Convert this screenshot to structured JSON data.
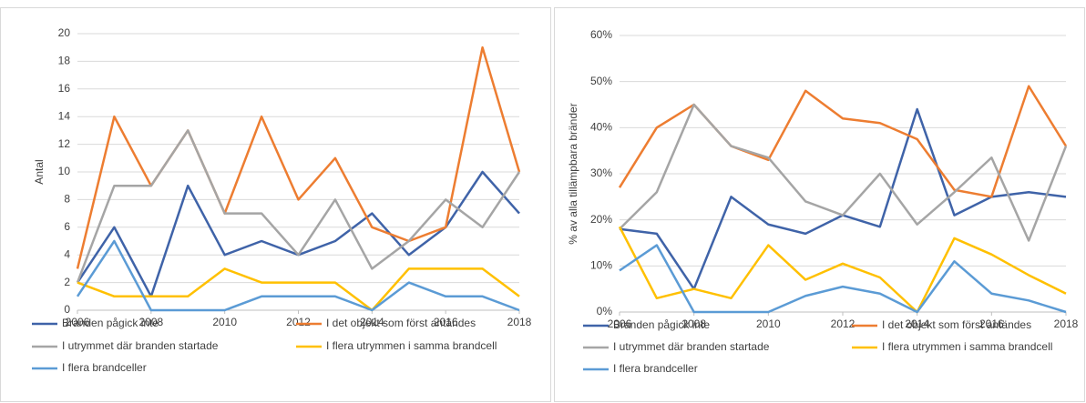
{
  "chart_data": [
    {
      "type": "line",
      "y_label": "Antal",
      "x": [
        2006,
        2007,
        2008,
        2009,
        2010,
        2011,
        2012,
        2013,
        2014,
        2015,
        2016,
        2017,
        2018
      ],
      "xlim": [
        2006,
        2018
      ],
      "xticks": [
        2006,
        2008,
        2010,
        2012,
        2014,
        2016,
        2018
      ],
      "ylim": [
        0,
        20
      ],
      "yticks": [
        0,
        2,
        4,
        6,
        8,
        10,
        12,
        14,
        16,
        18,
        20
      ],
      "grid": true,
      "series": [
        {
          "name": "Branden pågick inte",
          "color": "#3f63a8",
          "values": [
            2,
            6,
            1,
            9,
            4,
            5,
            4,
            5,
            7,
            4,
            6,
            10,
            7
          ]
        },
        {
          "name": "I det objekt som först antändes",
          "color": "#ed7d31",
          "values": [
            3,
            14,
            9,
            13,
            7,
            14,
            8,
            11,
            6,
            5,
            6,
            19,
            10
          ]
        },
        {
          "name": "I utrymmet där branden startade",
          "color": "#a5a5a5",
          "values": [
            2,
            9,
            9,
            13,
            7,
            7,
            4,
            8,
            3,
            5,
            8,
            6,
            10
          ]
        },
        {
          "name": "I flera utrymmen i samma brandcell",
          "color": "#ffc000",
          "values": [
            2,
            1,
            1,
            1,
            3,
            2,
            2,
            2,
            0,
            3,
            3,
            3,
            1
          ]
        },
        {
          "name": "I flera brandceller",
          "color": "#5b9bd5",
          "values": [
            1,
            5,
            0,
            0,
            0,
            1,
            1,
            1,
            0,
            2,
            1,
            1,
            0
          ]
        }
      ]
    },
    {
      "type": "line",
      "y_label": "% av alla tillämpbara bränder",
      "x": [
        2006,
        2007,
        2008,
        2009,
        2010,
        2011,
        2012,
        2013,
        2014,
        2015,
        2016,
        2017,
        2018
      ],
      "xlim": [
        2006,
        2018
      ],
      "xticks": [
        2006,
        2008,
        2010,
        2012,
        2014,
        2016,
        2018
      ],
      "ylim": [
        0,
        60
      ],
      "yticks": [
        {
          "value": 0,
          "label": "0%"
        },
        {
          "value": 10,
          "label": "10%"
        },
        {
          "value": 20,
          "label": "20%"
        },
        {
          "value": 30,
          "label": "30%"
        },
        {
          "value": 40,
          "label": "40%"
        },
        {
          "value": 50,
          "label": "50%"
        },
        {
          "value": 60,
          "label": "60%"
        }
      ],
      "grid": true,
      "series": [
        {
          "name": "Branden pågick inte",
          "color": "#3f63a8",
          "values": [
            18,
            17,
            5,
            25,
            19,
            17,
            21,
            18.5,
            44,
            21,
            25,
            26,
            25
          ]
        },
        {
          "name": "I det objekt som först antändes",
          "color": "#ed7d31",
          "values": [
            27,
            40,
            45,
            36,
            33,
            48,
            42,
            41,
            37.5,
            26.5,
            25,
            49,
            36
          ]
        },
        {
          "name": "I utrymmet där branden startade",
          "color": "#a5a5a5",
          "values": [
            18,
            26,
            45,
            36,
            33.5,
            24,
            21,
            30,
            19,
            26,
            33.5,
            15.5,
            36
          ]
        },
        {
          "name": "I flera utrymmen i samma brandcell",
          "color": "#ffc000",
          "values": [
            18.5,
            3,
            5,
            3,
            14.5,
            7,
            10.5,
            7.5,
            0,
            16,
            12.5,
            8,
            4
          ]
        },
        {
          "name": "I flera brandceller",
          "color": "#5b9bd5",
          "values": [
            9,
            14.5,
            0,
            0,
            0,
            3.5,
            5.5,
            4,
            0,
            11,
            4,
            2.5,
            0
          ]
        }
      ]
    }
  ]
}
